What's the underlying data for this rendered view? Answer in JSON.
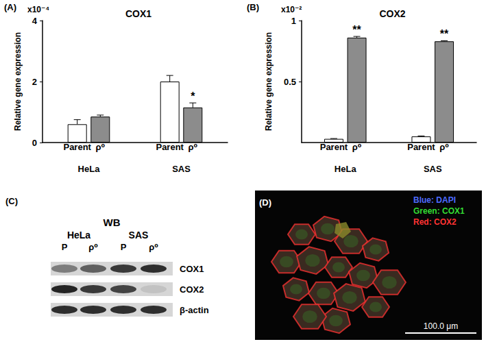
{
  "chart_data": [
    {
      "type": "bar",
      "panel": "(A)",
      "title": "COX1",
      "multiplier": "x10⁻⁴",
      "y_label": "Relative gene expression",
      "categories": [
        "HeLa",
        "SAS"
      ],
      "series": [
        {
          "name": "Parent",
          "color": "#ffffff",
          "values": [
            0.6,
            2.0
          ],
          "errors": [
            0.15,
            0.2
          ],
          "significance": [
            null,
            null
          ]
        },
        {
          "name": "ρ⁰",
          "color": "#8c8c8c",
          "values": [
            0.85,
            1.15
          ],
          "errors": [
            0.05,
            0.15
          ],
          "significance": [
            null,
            "*"
          ]
        }
      ],
      "ylim": [
        0,
        4
      ],
      "yticks": [
        0,
        2,
        4
      ],
      "grid": false
    },
    {
      "type": "bar",
      "panel": "(B)",
      "title": "COX2",
      "multiplier": "x10⁻²",
      "y_label": "Relative gene expression",
      "categories": [
        "HeLa",
        "SAS"
      ],
      "series": [
        {
          "name": "Parent",
          "color": "#ffffff",
          "values": [
            0.03,
            0.05
          ],
          "errors": [
            0.003,
            0.004
          ],
          "significance": [
            null,
            null
          ]
        },
        {
          "name": "ρ⁰",
          "color": "#8c8c8c",
          "values": [
            0.86,
            0.83
          ],
          "errors": [
            0.01,
            0.005
          ],
          "significance": [
            "**",
            "**"
          ]
        }
      ],
      "ylim": [
        0,
        1
      ],
      "yticks": [
        0.5,
        1
      ],
      "grid": false
    }
  ],
  "blot": {
    "panel": "(C)",
    "title": "WB",
    "groups": [
      "HeLa",
      "SAS"
    ],
    "lanes": [
      "P",
      "ρ⁰",
      "P",
      "ρ⁰"
    ],
    "rows": [
      {
        "label": "COX1",
        "intensity": [
          0.45,
          0.6,
          0.8,
          0.85
        ]
      },
      {
        "label": "COX2",
        "intensity": [
          0.9,
          0.8,
          0.75,
          0.1
        ]
      },
      {
        "label": "β-actin",
        "intensity": [
          0.85,
          0.85,
          0.85,
          0.85
        ]
      }
    ]
  },
  "image": {
    "panel": "(D)",
    "channels": [
      {
        "label": "Blue: DAPI",
        "color": "#4d6bff"
      },
      {
        "label": "Green: COX1",
        "color": "#33dd33"
      },
      {
        "label": "Red: COX2",
        "color": "#ff3333"
      }
    ],
    "scale_bar": "100.0 μm"
  }
}
